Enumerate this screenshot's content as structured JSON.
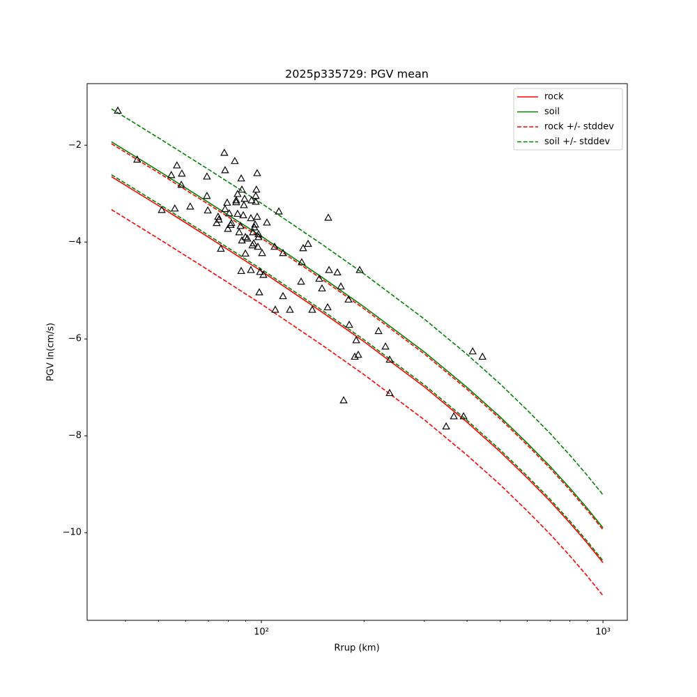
{
  "chart_data": {
    "type": "line",
    "title": "2025p335729: PGV mean",
    "xlabel": "Rrup (km)",
    "ylabel": "PGV ln(cm/s)",
    "xscale": "log",
    "xlim": [
      30.9,
      1178
    ],
    "ylim": [
      -11.81,
      -0.73
    ],
    "xticks": [
      {
        "value": 100,
        "label": "10²"
      },
      {
        "value": 1000,
        "label": "10³"
      }
    ],
    "xminorticks": [
      40,
      50,
      60,
      70,
      80,
      90,
      200,
      300,
      400,
      500,
      600,
      700,
      800,
      900
    ],
    "yticks": [
      {
        "value": -10,
        "label": "−10"
      },
      {
        "value": -8,
        "label": "−8"
      },
      {
        "value": -6,
        "label": "−6"
      },
      {
        "value": -4,
        "label": "−4"
      },
      {
        "value": -2,
        "label": "−2"
      }
    ],
    "legend": "upper right",
    "x": [
      36.4,
      50,
      70,
      100,
      150,
      200,
      300,
      400,
      500,
      600,
      700,
      800,
      900,
      1000
    ],
    "series": [
      {
        "name": "rock",
        "color": "#ff0000",
        "dash": false,
        "values": [
          -2.65,
          -3.25,
          -3.9,
          -4.6,
          -5.44,
          -6.06,
          -6.99,
          -7.72,
          -8.33,
          -8.87,
          -9.35,
          -9.8,
          -10.22,
          -10.62
        ]
      },
      {
        "name": "soil",
        "color": "#008000",
        "dash": false,
        "values": [
          -1.93,
          -2.53,
          -3.18,
          -3.88,
          -4.72,
          -5.34,
          -6.27,
          -7.0,
          -7.61,
          -8.15,
          -8.63,
          -9.08,
          -9.5,
          -9.9
        ]
      },
      {
        "name": "rock +/- stddev",
        "color": "#ff0000",
        "dash": true,
        "upper": [
          -1.97,
          -2.57,
          -3.22,
          -3.92,
          -4.76,
          -5.38,
          -6.31,
          -7.04,
          -7.65,
          -8.19,
          -8.67,
          -9.12,
          -9.54,
          -9.94
        ],
        "lower": [
          -3.33,
          -3.93,
          -4.58,
          -5.28,
          -6.12,
          -6.74,
          -7.67,
          -8.4,
          -9.01,
          -9.55,
          -10.03,
          -10.48,
          -10.9,
          -11.3
        ]
      },
      {
        "name": "soil +/- stddev",
        "color": "#008000",
        "dash": true,
        "upper": [
          -1.25,
          -1.85,
          -2.5,
          -3.2,
          -4.04,
          -4.66,
          -5.59,
          -6.32,
          -6.93,
          -7.47,
          -7.95,
          -8.4,
          -8.82,
          -9.22
        ],
        "lower": [
          -2.61,
          -3.21,
          -3.86,
          -4.56,
          -5.4,
          -6.02,
          -6.95,
          -7.68,
          -8.29,
          -8.83,
          -9.31,
          -9.76,
          -10.18,
          -10.58
        ]
      }
    ],
    "points": {
      "color": "#000000",
      "x": [
        38.0,
        43.3,
        51.1,
        54.5,
        55.8,
        56.6,
        58.5,
        58.3,
        61.9,
        69.3,
        69.3,
        69.7,
        74.0,
        74.7,
        75.1,
        76.1,
        78.3,
        77.9,
        78.3,
        79.4,
        79.8,
        80.5,
        81.3,
        81.7,
        83.6,
        84.4,
        84.4,
        85.2,
        85.2,
        86.1,
        86.9,
        87.3,
        87.7,
        87.3,
        87.7,
        88.5,
        88.9,
        89.3,
        89.8,
        89.8,
        91.0,
        93.2,
        93.2,
        93.6,
        94.1,
        94.5,
        95.0,
        95.4,
        95.9,
        96.3,
        96.3,
        96.7,
        97.2,
        97.2,
        97.7,
        98.1,
        98.1,
        98.6,
        99.1,
        100.5,
        101.4,
        103.8,
        109.3,
        109.8,
        112.5,
        115.7,
        115.7,
        121.2,
        130.7,
        131.3,
        132.5,
        137.0,
        140.9,
        147.7,
        150.5,
        156.3,
        157.0,
        157.8,
        166.9,
        170.9,
        174.1,
        179.9,
        180.8,
        189.5,
        192.1,
        194.0,
        220.3,
        230.8,
        237.4,
        237.4,
        347.4,
        365.9,
        390.8,
        415.4,
        443.7,
        187.7
      ],
      "y": [
        -1.29,
        -2.3,
        -3.34,
        -2.62,
        -3.31,
        -2.42,
        -2.59,
        -2.82,
        -3.27,
        -2.65,
        -3.05,
        -3.35,
        -3.61,
        -3.48,
        -3.54,
        -4.14,
        -2.52,
        -2.16,
        -3.32,
        -3.19,
        -3.73,
        -3.41,
        -3.65,
        -3.61,
        -2.33,
        -3.14,
        -3.18,
        -3.01,
        -3.42,
        -3.8,
        -3.67,
        -2.69,
        -2.92,
        -4.6,
        -3.97,
        -3.45,
        -3.24,
        -3.11,
        -3.9,
        -4.24,
        -3.93,
        -3.51,
        -4.58,
        -3.14,
        -4.07,
        -3.8,
        -4.03,
        -3.7,
        -3.64,
        -3.05,
        -3.17,
        -2.92,
        -2.58,
        -3.48,
        -4.1,
        -3.84,
        -3.9,
        -5.04,
        -4.62,
        -4.23,
        -4.68,
        -3.6,
        -4.1,
        -5.4,
        -3.37,
        -5.12,
        -4.23,
        -5.4,
        -4.82,
        -4.42,
        -4.13,
        -4.04,
        -5.4,
        -4.76,
        -4.96,
        -5.35,
        -3.5,
        -4.58,
        -4.63,
        -4.92,
        -7.27,
        -5.19,
        -5.71,
        -6.03,
        -6.33,
        -4.58,
        -5.84,
        -6.16,
        -6.43,
        -7.12,
        -7.81,
        -7.6,
        -7.6,
        -6.26,
        -6.37,
        -6.37
      ]
    }
  }
}
